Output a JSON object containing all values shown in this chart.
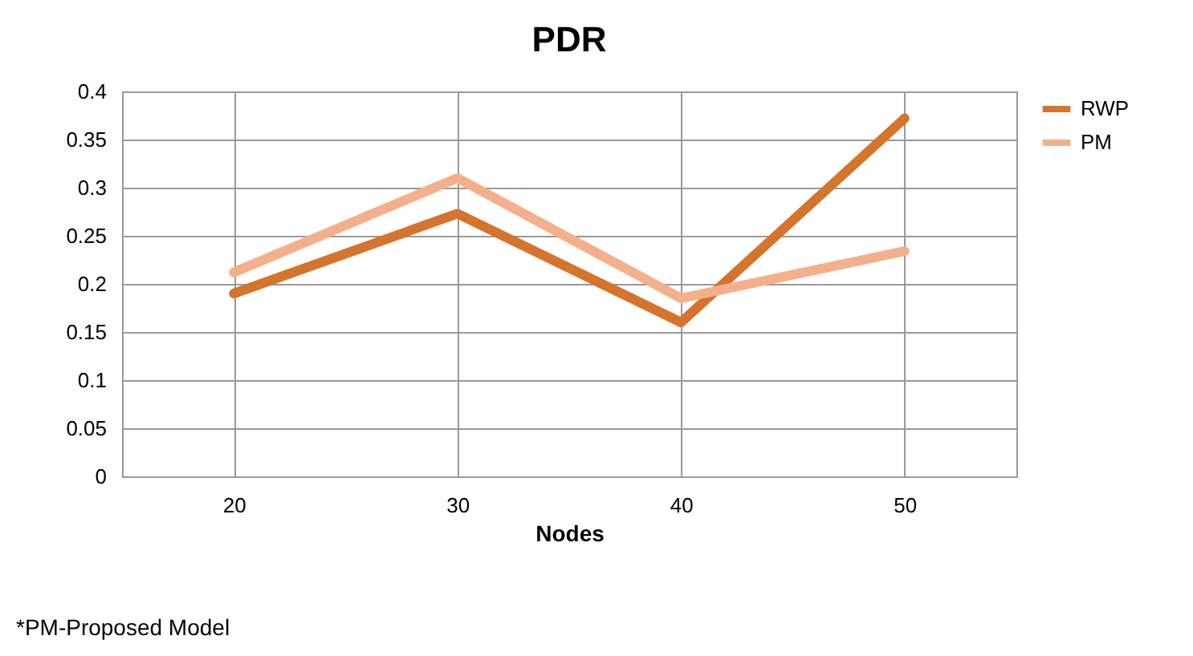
{
  "chart_data": {
    "type": "line",
    "title": "PDR",
    "xlabel": "Nodes",
    "categories": [
      "20",
      "30",
      "40",
      "50"
    ],
    "series": [
      {
        "name": "RWP",
        "color": "#d5742c",
        "values": [
          0.19,
          0.273,
          0.16,
          0.372
        ]
      },
      {
        "name": "PM",
        "color": "#f4b08a",
        "values": [
          0.212,
          0.31,
          0.185,
          0.234
        ]
      }
    ],
    "ylim": [
      0,
      0.4
    ],
    "yticks": [
      0,
      0.05,
      0.1,
      0.15,
      0.2,
      0.25,
      0.3,
      0.35,
      0.4
    ],
    "grid": true,
    "legend": "right",
    "marker": "none",
    "line_style": "solid",
    "annotations": [
      "*PM-Proposed Model"
    ]
  }
}
